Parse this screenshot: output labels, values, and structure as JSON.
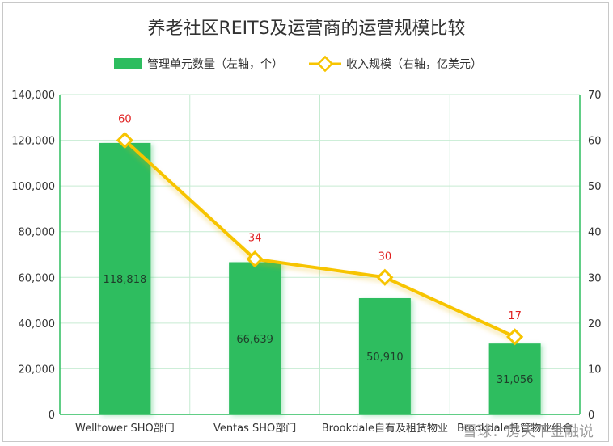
{
  "chart_data": {
    "type": "bar",
    "title": "养老社区REITS及运营商的运营规模比较",
    "categories": [
      "Welltower SHO部门",
      "Ventas SHO部门",
      "Brookdale自有及租赁物业",
      "Brookdale托管物业组合"
    ],
    "series": [
      {
        "name": "管理单元数量（左轴，个）",
        "type": "bar",
        "axis": "left",
        "color": "#2dbd5f",
        "values": [
          118818,
          66639,
          50910,
          31056
        ],
        "labels": [
          "118,818",
          "66,639",
          "50,910",
          "31,056"
        ]
      },
      {
        "name": "收入规模（右轴，亿美元）",
        "type": "line",
        "axis": "right",
        "color": "#f7c400",
        "values": [
          60,
          34,
          30,
          17
        ],
        "labels": [
          "60",
          "34",
          "30",
          "17"
        ]
      }
    ],
    "y_left": {
      "range": [
        0,
        140000
      ],
      "ticks": [
        "0",
        "20,000",
        "40,000",
        "60,000",
        "80,000",
        "100,000",
        "120,000",
        "140,000"
      ]
    },
    "y_right": {
      "range": [
        0,
        70
      ],
      "ticks": [
        "0",
        "10",
        "20",
        "30",
        "40",
        "50",
        "60",
        "70"
      ]
    },
    "grid": true,
    "legend_position": "top-center",
    "grid_color": "#c6ebd2",
    "axis_color": "#2dbd5f"
  },
  "watermark": "雪球：房天下金融说"
}
